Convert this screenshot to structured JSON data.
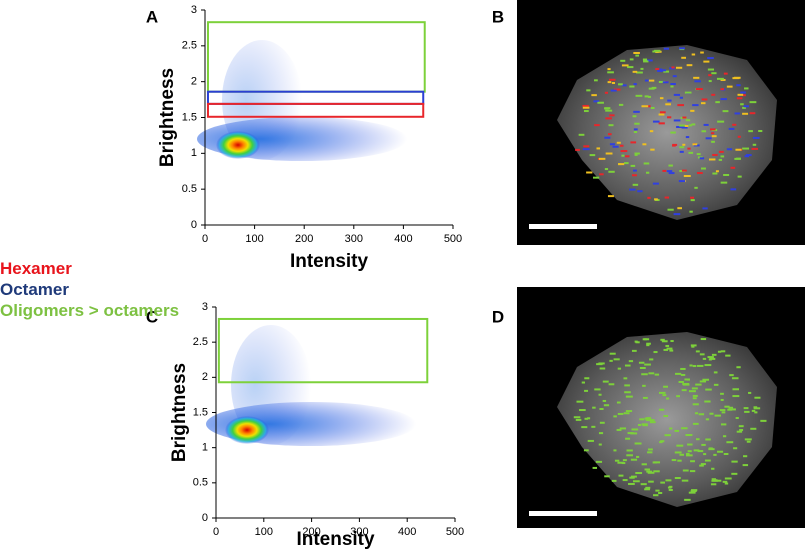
{
  "chart_data": [
    {
      "type": "scatter",
      "panel": "A",
      "xlabel": "Intensity",
      "ylabel": "Brightness",
      "xlim": [
        0,
        500
      ],
      "ylim": [
        0,
        3
      ],
      "xticks": [
        0,
        100,
        200,
        300,
        400,
        500
      ],
      "yticks": [
        0,
        0.5,
        1,
        1.5,
        2,
        2.5,
        3
      ],
      "gates": [
        {
          "color": "#7dd13a",
          "x": [
            6,
            443
          ],
          "y": [
            1.86,
            2.83
          ]
        },
        {
          "color": "#2b3fd4",
          "x": [
            6,
            440
          ],
          "y": [
            1.69,
            1.86
          ]
        },
        {
          "color": "#e8262b",
          "x": [
            6,
            440
          ],
          "y": [
            1.51,
            1.69
          ]
        }
      ]
    },
    {
      "type": "scatter",
      "panel": "C",
      "xlabel": "Intensity",
      "ylabel": "Brightness",
      "xlim": [
        0,
        500
      ],
      "ylim": [
        0,
        3
      ],
      "xticks": [
        0,
        100,
        200,
        300,
        400,
        500
      ],
      "yticks": [
        0,
        0.5,
        1,
        1.5,
        2,
        2.5,
        3
      ],
      "gates": [
        {
          "color": "#7dd13a",
          "x": [
            6,
            442
          ],
          "y": [
            1.93,
            2.83
          ]
        }
      ]
    }
  ],
  "legend": [
    {
      "label": "Hexamer",
      "color": "#e8141c"
    },
    {
      "label": "Octamer",
      "color": "#1f3a7a"
    },
    {
      "label": "Oligomers  > octamers",
      "color": "#7dc142"
    }
  ],
  "images": [
    {
      "panel": "B"
    },
    {
      "panel": "D"
    }
  ]
}
